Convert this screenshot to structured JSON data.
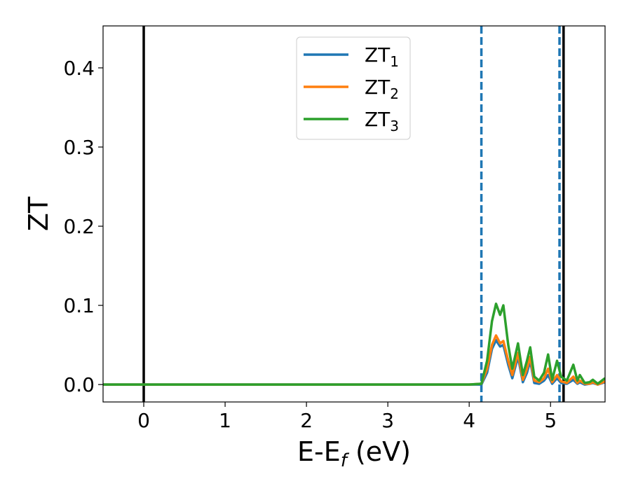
{
  "chart_data": {
    "type": "line",
    "xlabel": [
      "E-E",
      "f",
      " (eV)"
    ],
    "ylabel": "ZT",
    "x": [
      -0.5,
      4.0,
      4.15,
      4.22,
      4.28,
      4.33,
      4.38,
      4.42,
      4.48,
      4.53,
      4.6,
      4.66,
      4.71,
      4.75,
      4.8,
      4.86,
      4.92,
      4.97,
      5.02,
      5.08,
      5.13,
      5.2,
      5.28,
      5.33,
      5.36,
      5.42,
      5.48,
      5.52,
      5.58,
      5.67
    ],
    "series": [
      {
        "name": "ZT",
        "name_sub": "1",
        "color": "#1f77b4",
        "values": [
          0,
          0,
          0,
          0.015,
          0.045,
          0.056,
          0.048,
          0.05,
          0.025,
          0.008,
          0.035,
          0.003,
          0.015,
          0.03,
          0.002,
          0.001,
          0.005,
          0.012,
          0.001,
          0.008,
          0.002,
          0.001,
          0.006,
          0.001,
          0.003,
          0,
          0.001,
          0.002,
          0,
          0.003
        ]
      },
      {
        "name": "ZT",
        "name_sub": "2",
        "color": "#ff7f0e",
        "values": [
          0,
          0,
          0.001,
          0.02,
          0.05,
          0.062,
          0.052,
          0.055,
          0.03,
          0.012,
          0.04,
          0.006,
          0.02,
          0.035,
          0.005,
          0.003,
          0.008,
          0.02,
          0.003,
          0.012,
          0.004,
          0.002,
          0.01,
          0.002,
          0.005,
          0.001,
          0.001,
          0.003,
          0,
          0.004
        ]
      },
      {
        "name": "ZT",
        "name_sub": "3",
        "color": "#2ca02c",
        "values": [
          0,
          0,
          0.001,
          0.03,
          0.08,
          0.102,
          0.088,
          0.1,
          0.05,
          0.02,
          0.052,
          0.012,
          0.03,
          0.047,
          0.01,
          0.005,
          0.015,
          0.038,
          0.006,
          0.03,
          0.01,
          0.005,
          0.025,
          0.005,
          0.012,
          0.002,
          0.003,
          0.006,
          0.001,
          0.008
        ]
      }
    ],
    "vlines": [
      {
        "x": 0,
        "color": "#000000",
        "dashed": false
      },
      {
        "x": 4.15,
        "color": "#1f77b4",
        "dashed": true
      },
      {
        "x": 5.11,
        "color": "#1f77b4",
        "dashed": true
      },
      {
        "x": 5.16,
        "color": "#000000",
        "dashed": false
      }
    ],
    "xlim": [
      -0.5,
      5.67
    ],
    "ylim": [
      -0.022,
      0.453
    ],
    "xticks": [
      0,
      1,
      2,
      3,
      4,
      5
    ],
    "yticks": [
      {
        "value": 0,
        "label": "0.0"
      },
      {
        "value": 0.1,
        "label": "0.1"
      },
      {
        "value": 0.2,
        "label": "0.2"
      },
      {
        "value": 0.3,
        "label": "0.3"
      },
      {
        "value": 0.4,
        "label": "0.4"
      }
    ],
    "legend": "upper center"
  }
}
